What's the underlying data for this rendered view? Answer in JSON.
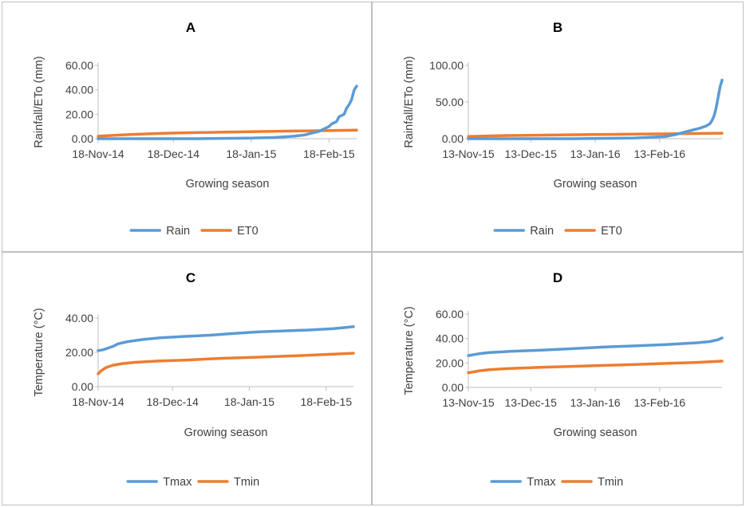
{
  "figure": {
    "colors": {
      "blue": "#5b9bd5",
      "orange": "#ed7d31",
      "axis": "#bfbfbf",
      "border": "#bfbfbf"
    }
  },
  "chart_data": [
    {
      "panel": "A",
      "type": "line",
      "title": "A",
      "xlabel": "Growing season",
      "ylabel": "Rainfall/ETo (mm)",
      "ylim": [
        0,
        60
      ],
      "yticks": [
        0,
        20,
        40,
        60
      ],
      "ytick_labels": [
        "0.00",
        "20.00",
        "40.00",
        "60.00"
      ],
      "xlim": [
        0,
        103
      ],
      "xticks": [
        0,
        30,
        61,
        92
      ],
      "xtick_labels": [
        "18-Nov-14",
        "18-Dec-14",
        "18-Jan-15",
        "18-Feb-15"
      ],
      "legend": [
        "Rain",
        "ET0"
      ],
      "series": [
        {
          "name": "Rain",
          "color": "#5b9bd5",
          "x": [
            0,
            40,
            60,
            70,
            78,
            82,
            86,
            88,
            90,
            91,
            92,
            93,
            94,
            95,
            96,
            97,
            98,
            99,
            100,
            101,
            102,
            103
          ],
          "y": [
            0,
            0,
            0.5,
            1,
            2,
            3,
            5,
            6,
            8,
            9,
            10,
            12,
            13,
            14,
            18,
            19,
            20,
            25,
            28,
            32,
            40,
            43
          ]
        },
        {
          "name": "ET0",
          "color": "#ed7d31",
          "x": [
            0,
            10,
            20,
            30,
            40,
            50,
            60,
            70,
            80,
            90,
            103
          ],
          "y": [
            2,
            3.2,
            4,
            4.6,
            5,
            5.4,
            5.7,
            6,
            6.3,
            6.6,
            7
          ]
        }
      ]
    },
    {
      "panel": "B",
      "type": "line",
      "title": "B",
      "xlabel": "Growing season",
      "ylabel": "Rainfall/ETo (mm)",
      "ylim": [
        0,
        100
      ],
      "yticks": [
        0,
        50,
        100
      ],
      "ytick_labels": [
        "0.00",
        "50.00",
        "100.00"
      ],
      "xlim": [
        0,
        122
      ],
      "xticks": [
        0,
        30,
        61,
        92
      ],
      "xtick_labels": [
        "13-Nov-15",
        "13-Dec-15",
        "13-Jan-16",
        "13-Feb-16"
      ],
      "legend": [
        "Rain",
        "ET0"
      ],
      "series": [
        {
          "name": "Rain",
          "color": "#5b9bd5",
          "x": [
            0,
            50,
            80,
            95,
            100,
            104,
            108,
            111,
            114,
            116,
            117,
            118,
            119,
            120,
            121,
            122
          ],
          "y": [
            0,
            0,
            1,
            3,
            6,
            9,
            12,
            14,
            17,
            20,
            24,
            30,
            40,
            55,
            70,
            80
          ]
        },
        {
          "name": "ET0",
          "color": "#ed7d31",
          "x": [
            0,
            10,
            20,
            40,
            60,
            80,
            100,
            122
          ],
          "y": [
            3,
            3.8,
            4.3,
            5,
            5.6,
            6.2,
            6.8,
            7.5
          ]
        }
      ]
    },
    {
      "panel": "C",
      "type": "line",
      "title": "C",
      "xlabel": "Growing season",
      "ylabel": "Temperature (°C)",
      "ylim": [
        0,
        40
      ],
      "yticks": [
        0,
        20,
        40
      ],
      "ytick_labels": [
        "0.00",
        "20.00",
        "40.00"
      ],
      "xlim": [
        0,
        103
      ],
      "xticks": [
        0,
        30,
        61,
        92
      ],
      "xtick_labels": [
        "18-Nov-14",
        "18-Dec-14",
        "18-Jan-15",
        "18-Feb-15"
      ],
      "legend": [
        "Tmax",
        "Tmin"
      ],
      "series": [
        {
          "name": "Tmax",
          "color": "#5b9bd5",
          "x": [
            0,
            2,
            4,
            6,
            8,
            12,
            18,
            25,
            35,
            45,
            55,
            65,
            75,
            85,
            95,
            100,
            103
          ],
          "y": [
            21,
            21.5,
            22.5,
            23.5,
            25,
            26.3,
            27.5,
            28.5,
            29.3,
            30,
            31,
            32,
            32.5,
            33,
            33.8,
            34.5,
            35
          ]
        },
        {
          "name": "Tmin",
          "color": "#ed7d31",
          "x": [
            0,
            1,
            3,
            6,
            10,
            15,
            25,
            35,
            50,
            65,
            80,
            95,
            103
          ],
          "y": [
            7.5,
            9,
            11,
            12.5,
            13.5,
            14.2,
            15,
            15.5,
            16.5,
            17.2,
            18,
            19,
            19.5
          ]
        }
      ]
    },
    {
      "panel": "D",
      "type": "line",
      "title": "D",
      "xlabel": "Growing season",
      "ylabel": "Temperature (°C)",
      "ylim": [
        0,
        60
      ],
      "yticks": [
        0,
        20,
        40,
        60
      ],
      "ytick_labels": [
        "0.00",
        "20.00",
        "40.00",
        "60.00"
      ],
      "xlim": [
        0,
        122
      ],
      "xticks": [
        0,
        30,
        61,
        92
      ],
      "xtick_labels": [
        "13-Nov-15",
        "13-Dec-15",
        "13-Jan-16",
        "13-Feb-16"
      ],
      "legend": [
        "Tmax",
        "Tmin"
      ],
      "series": [
        {
          "name": "Tmax",
          "color": "#5b9bd5",
          "x": [
            0,
            5,
            10,
            20,
            35,
            50,
            65,
            80,
            95,
            110,
            116,
            120,
            122
          ],
          "y": [
            26,
            27.5,
            28.5,
            29.5,
            30.5,
            31.7,
            33,
            34,
            35,
            36.5,
            37.5,
            39,
            40.5
          ]
        },
        {
          "name": "Tmin",
          "color": "#ed7d31",
          "x": [
            0,
            5,
            10,
            20,
            35,
            50,
            65,
            80,
            95,
            110,
            122
          ],
          "y": [
            12,
            13.5,
            14.5,
            15.5,
            16.5,
            17.2,
            18,
            18.8,
            19.6,
            20.5,
            21.5
          ]
        }
      ]
    }
  ]
}
